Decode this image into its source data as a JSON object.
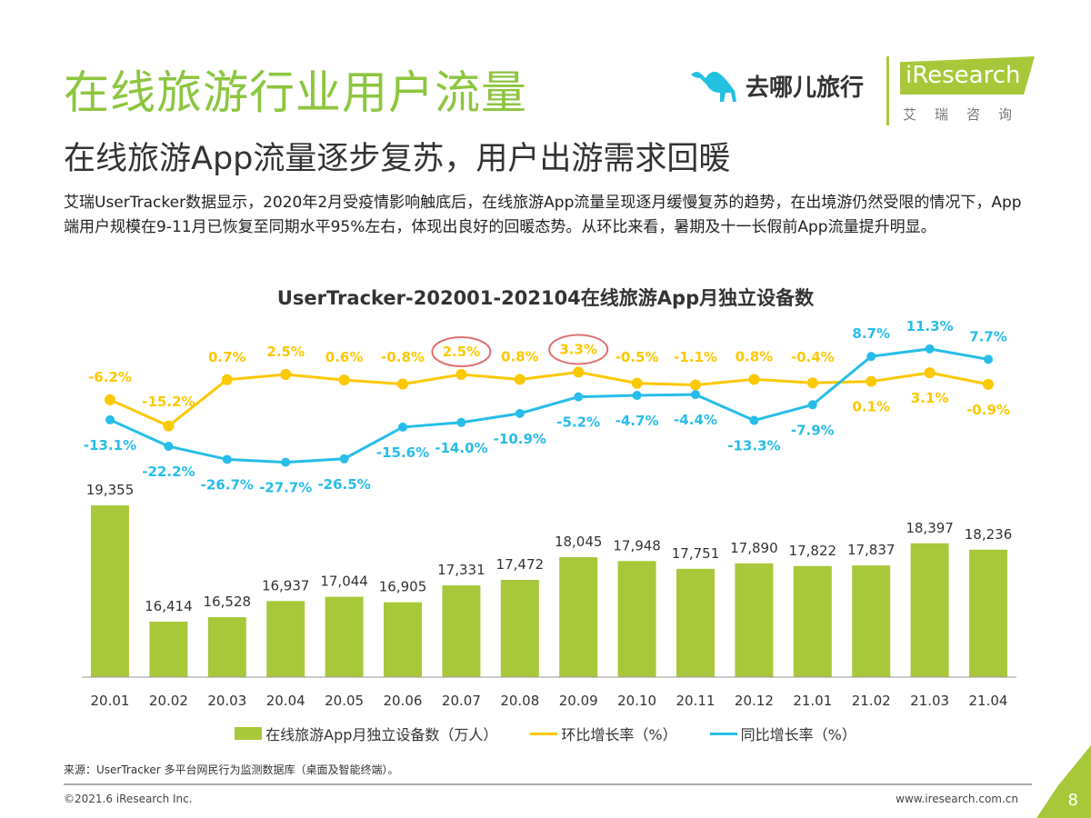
{
  "header": {
    "title": "在线旅游行业用户流量",
    "subtitle": "在线旅游App流量逐步复苏，用户出游需求回暖",
    "description": "艾瑞UserTracker数据显示，2020年2月受疫情影响触底后，在线旅游App流量呈现逐月缓慢复苏的趋势，在出境游仍然受限的情况下，App端用户规模在9-11月已恢复至同期水平95%左右，体现出良好的回暖态势。从环比来看，暑期及十一长假前App流量提升明显。"
  },
  "logos": {
    "qunar": "去哪儿旅行",
    "iresearch": "iResearch",
    "iresearch_cn": "艾瑞咨询"
  },
  "chart_data": {
    "type": "bar+line",
    "title": "UserTracker-202001-202104在线旅游App月独立设备数",
    "categories": [
      "20.01",
      "20.02",
      "20.03",
      "20.04",
      "20.05",
      "20.06",
      "20.07",
      "20.08",
      "20.09",
      "20.10",
      "20.11",
      "20.12",
      "21.01",
      "21.02",
      "21.03",
      "21.04"
    ],
    "series": [
      {
        "name": "在线旅游App月独立设备数（万人）",
        "type": "bar",
        "color": "#a8c83a",
        "values": [
          19355,
          16414,
          16528,
          16937,
          17044,
          16905,
          17331,
          17472,
          18045,
          17948,
          17751,
          17890,
          17822,
          17837,
          18397,
          18236
        ]
      },
      {
        "name": "环比增长率（%）",
        "type": "line",
        "color": "#fcc800",
        "values": [
          -6.2,
          -15.2,
          0.7,
          2.5,
          0.6,
          -0.8,
          2.5,
          0.8,
          3.3,
          -0.5,
          -1.1,
          0.8,
          -0.4,
          0.1,
          3.1,
          -0.9
        ]
      },
      {
        "name": "同比增长率（%）",
        "type": "line",
        "color": "#27bde9",
        "values": [
          -13.1,
          -22.2,
          -26.7,
          -27.7,
          -26.5,
          -15.6,
          -14.0,
          -10.9,
          -5.2,
          -4.7,
          -4.4,
          -13.3,
          -7.9,
          8.7,
          11.3,
          7.7
        ]
      }
    ],
    "highlighted": [
      "20.07",
      "20.09"
    ],
    "highlight_color": "#e07070",
    "legend": "bottom"
  },
  "footer": {
    "source": "来源：UserTracker 多平台网民行为监测数据库（桌面及智能终端）。",
    "copyright": "©2021.6 iResearch Inc.",
    "website": "www.iresearch.com.cn",
    "page": "8"
  }
}
